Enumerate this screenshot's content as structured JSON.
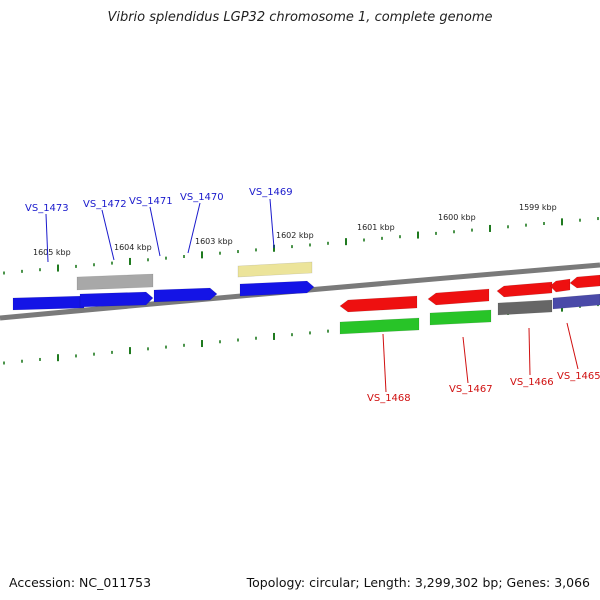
{
  "title": "Vibrio splendidus LGP32 chromosome 1, complete genome",
  "footer": {
    "accession": "Accession: NC_011753",
    "summary": "Topology: circular; Length: 3,299,302 bp; Genes: 3,066"
  },
  "colors": {
    "backbone": "#7a7a7a",
    "ticks": "#1f7a1f",
    "forward_label": "#1a1acc",
    "reverse_label": "#d01010",
    "blue": "#1414e6",
    "gray": "#a8a8a8",
    "yellow": "#ece49a",
    "red": "#ee1010",
    "green": "#28c428",
    "dark_gray": "#666666",
    "purple": "#4a4aa8"
  },
  "kbp_labels": [
    "1605 kbp",
    "1604 kbp",
    "1603 kbp",
    "1602 kbp",
    "1601 kbp",
    "1600 kbp",
    "1599 kbp"
  ],
  "forward_gene_labels": [
    "VS_1473",
    "VS_1472",
    "VS_1471",
    "VS_1470",
    "VS_1469"
  ],
  "reverse_gene_labels": [
    "VS_1468",
    "VS_1467",
    "VS_1466",
    "VS_1465"
  ]
}
